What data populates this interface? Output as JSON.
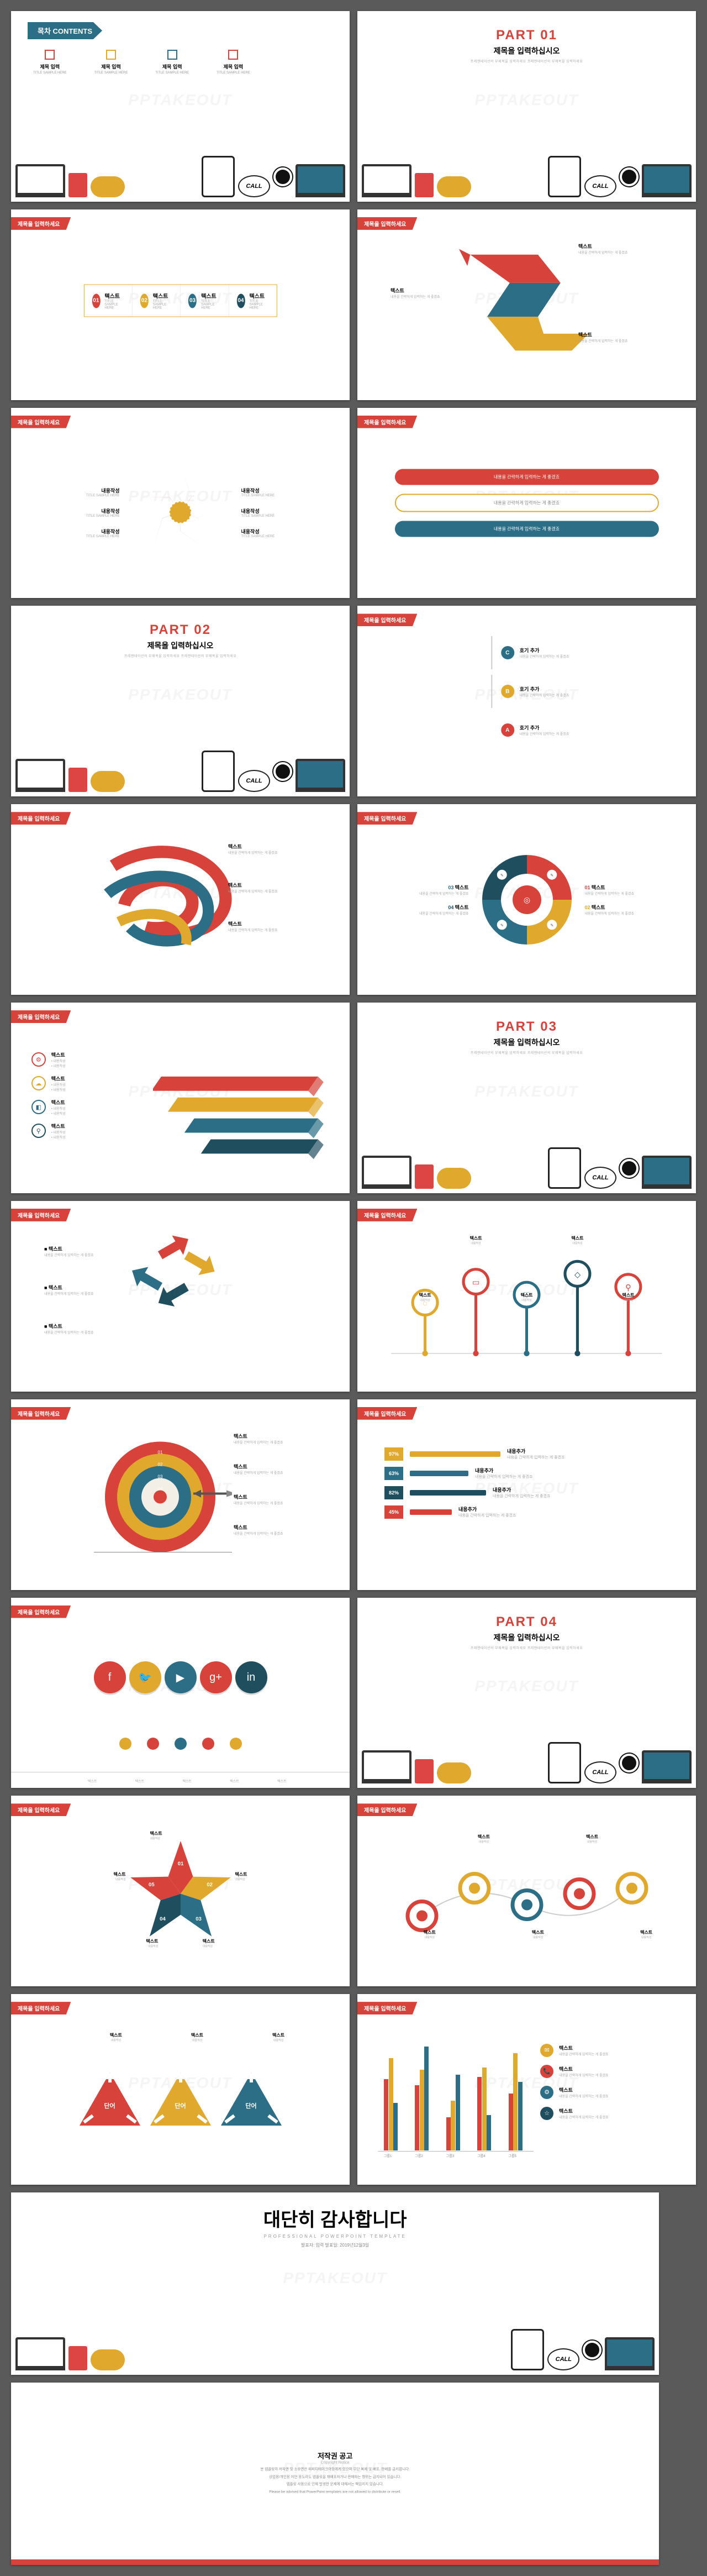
{
  "watermark": "PPTAKEOUT",
  "palette": {
    "red": "#d7433a",
    "gold": "#e1a82e",
    "teal": "#2b6e86",
    "darkteal": "#1f4e5f",
    "offwhite": "#f4efe6",
    "grey": "#bfbfbf"
  },
  "titlebar_text": "제목을 입력하세요",
  "sample_sub": "TITLE SAMPLE HERE",
  "text_kr": "텍스트",
  "content_kr": "내용작성",
  "insert_kr": "내용을 간략하게 입력하는 게 좋겠죠",
  "slide1": {
    "badge": "목차 CONTENTS",
    "items": [
      {
        "color": "#d7433a",
        "label": "제목 입력"
      },
      {
        "color": "#e1a82e",
        "label": "제목 입력"
      },
      {
        "color": "#2b6e86",
        "label": "제목 입력"
      },
      {
        "color": "#d7433a",
        "label": "제목 입력"
      }
    ],
    "call_bubble": "CALL"
  },
  "parts": {
    "p1": {
      "n": "PART 01",
      "color": "#d7433a",
      "title": "제목을 입력하십시오",
      "sub": "프레젠테이션의 부제목을 입력하세요 프레젠테이션의 부제목을 입력하세요"
    },
    "p2": {
      "n": "PART 02",
      "color": "#d7433a",
      "title": "제목을 입력하십시오",
      "sub": "프레젠테이션의 부제목을 입력하세요 프레젠테이션의 부제목을 입력하세요"
    },
    "p3": {
      "n": "PART 03",
      "color": "#d7433a",
      "title": "제목을 입력하십시오",
      "sub": "프레젠테이션의 부제목을 입력하세요 프레젠테이션의 부제목을 입력하세요"
    },
    "p4": {
      "n": "PART 04",
      "color": "#d7433a",
      "title": "제목을 입력하십시오",
      "sub": "프레젠테이션의 부제목을 입력하세요 프레젠테이션의 부제목을 입력하세요"
    }
  },
  "slide3": {
    "cells": [
      {
        "n": "01",
        "color": "#d7433a"
      },
      {
        "n": "02",
        "color": "#e1a82e"
      },
      {
        "n": "03",
        "color": "#2b6e86"
      },
      {
        "n": "04",
        "color": "#1f4e5f"
      }
    ]
  },
  "slide4": {
    "type": "zigzag-arrow",
    "segments": [
      {
        "color": "#d7433a"
      },
      {
        "color": "#2b6e86"
      },
      {
        "color": "#e1a82e"
      }
    ],
    "labels": [
      {
        "a": "텍스트",
        "b": "내용을 간략하게 입력하는 게 좋겠죠"
      },
      {
        "a": "텍스트",
        "b": "내용을 간략하게 입력하는 게 좋겠죠"
      },
      {
        "a": "텍스트",
        "b": "내용을 간략하게 입력하는 게 좋겠죠"
      }
    ]
  },
  "slide5": {
    "type": "star-segments",
    "points": [
      {
        "color": "#d7433a"
      },
      {
        "color": "#e1a82e"
      },
      {
        "color": "#2b6e86"
      },
      {
        "color": "#1f4e5f"
      },
      {
        "color": "#d7433a"
      }
    ],
    "center_color": "#e1a82e"
  },
  "slide6": {
    "pills": [
      {
        "fill": "#d7433a",
        "outline": false
      },
      {
        "fill": "#e1a82e",
        "outline": true
      },
      {
        "fill": "#2b6e86",
        "outline": false
      }
    ]
  },
  "slide8": {
    "nodes": [
      {
        "id": "C",
        "color": "#2b6e86",
        "label": "호기 추가",
        "sub": "내용을 간략하게 입력하는 게 좋겠죠"
      },
      {
        "id": "B",
        "color": "#e1a82e",
        "label": "호기 추가",
        "sub": "내용을 간략하게 입력하는 게 좋겠죠"
      },
      {
        "id": "A",
        "color": "#d7433a",
        "label": "호기 추가",
        "sub": "내용을 간략하게 입력하는 게 좋겠죠"
      }
    ]
  },
  "slide9": {
    "type": "ribbon-swirl",
    "ribbons": [
      {
        "c": "#d7433a"
      },
      {
        "c": "#2b6e86"
      },
      {
        "c": "#e1a82e"
      }
    ],
    "labels": [
      "텍스트",
      "텍스트",
      "텍스트"
    ]
  },
  "slide10": {
    "type": "donut",
    "segments": [
      {
        "id": "01",
        "color": "#d7433a",
        "pct": 25
      },
      {
        "id": "02",
        "color": "#e1a82e",
        "pct": 25
      },
      {
        "id": "03",
        "color": "#2b6e86",
        "pct": 25
      },
      {
        "id": "04",
        "color": "#1f4e5f",
        "pct": 25
      }
    ],
    "center_color": "#d7433a"
  },
  "slide11": {
    "type": "3d-stacked-bars",
    "icons": [
      {
        "c": "#d7433a",
        "glyph": "⚙"
      },
      {
        "c": "#e1a82e",
        "glyph": "☁"
      },
      {
        "c": "#2b6e86",
        "glyph": "◧"
      },
      {
        "c": "#1f4e5f",
        "glyph": "⚲"
      }
    ],
    "bars": [
      {
        "color": "#d7433a",
        "len": 0.95
      },
      {
        "color": "#e1a82e",
        "len": 0.85
      },
      {
        "color": "#2b6e86",
        "len": 0.75
      },
      {
        "color": "#1f4e5f",
        "len": 0.65
      }
    ]
  },
  "slide13": {
    "type": "arrow-cluster",
    "items": [
      "텍스트",
      "텍스트",
      "텍스트"
    ],
    "colors": [
      "#d7433a",
      "#e1a82e",
      "#2b6e86",
      "#1f4e5f"
    ]
  },
  "slide14": {
    "type": "lollipop",
    "stems": [
      {
        "c": "#e1a82e",
        "glyph": "◌"
      },
      {
        "c": "#d7433a",
        "glyph": "▭"
      },
      {
        "c": "#2b6e86",
        "glyph": "♡"
      },
      {
        "c": "#1f4e5f",
        "glyph": "◇"
      },
      {
        "c": "#d7433a",
        "glyph": "⚲"
      }
    ]
  },
  "slide15": {
    "type": "target",
    "rings": [
      {
        "c": "#d7433a"
      },
      {
        "c": "#e1a82e"
      },
      {
        "c": "#2b6e86"
      },
      {
        "c": "#f4efe6"
      }
    ],
    "nums": [
      "01",
      "02",
      "03",
      "04"
    ]
  },
  "slide16": {
    "type": "hbars",
    "rows": [
      {
        "pct": "97%",
        "c": "#e1a82e",
        "w": 0.82,
        "label": "내용추가"
      },
      {
        "pct": "63%",
        "c": "#2b6e86",
        "w": 0.53,
        "label": "내용추가"
      },
      {
        "pct": "82%",
        "c": "#1f4e5f",
        "w": 0.69,
        "label": "내용추가"
      },
      {
        "pct": "45%",
        "c": "#d7433a",
        "w": 0.38,
        "label": "내용추가"
      }
    ]
  },
  "slide17": {
    "type": "social-circles",
    "icons": [
      {
        "c": "#d7433a",
        "g": "f"
      },
      {
        "c": "#e1a82e",
        "g": "🐦"
      },
      {
        "c": "#2b6e86",
        "g": "▶"
      },
      {
        "c": "#d7433a",
        "g": "g+"
      },
      {
        "c": "#1f4e5f",
        "g": "in"
      }
    ],
    "dots": [
      "#e1a82e",
      "#d7433a",
      "#2b6e86",
      "#d7433a",
      "#e1a82e"
    ]
  },
  "slide19": {
    "type": "star-numbers",
    "points": [
      {
        "n": "01",
        "c": "#d7433a"
      },
      {
        "n": "02",
        "c": "#e1a82e"
      },
      {
        "n": "03",
        "c": "#2b6e86"
      },
      {
        "n": "04",
        "c": "#1f4e5f"
      },
      {
        "n": "05",
        "c": "#d7433a"
      }
    ]
  },
  "slide20": {
    "type": "circle-chain",
    "nodes": [
      {
        "c": "#d7433a"
      },
      {
        "c": "#e1a82e"
      },
      {
        "c": "#2b6e86"
      },
      {
        "c": "#d7433a"
      },
      {
        "c": "#e1a82e"
      }
    ]
  },
  "slide21": {
    "type": "triangles",
    "items": [
      {
        "c": "#d7433a",
        "label": "단어"
      },
      {
        "c": "#e1a82e",
        "label": "단어"
      },
      {
        "c": "#2b6e86",
        "label": "단어"
      }
    ]
  },
  "slide22": {
    "type": "grouped-bar",
    "groups": [
      "그룹1",
      "그룹2",
      "그룹3",
      "그룹4",
      "그룹5"
    ],
    "series": [
      {
        "c": "#d7433a",
        "v": [
          60,
          55,
          28,
          62,
          48
        ]
      },
      {
        "c": "#e1a82e",
        "v": [
          78,
          68,
          42,
          70,
          82
        ]
      },
      {
        "c": "#2b6e86",
        "v": [
          40,
          88,
          64,
          30,
          58
        ]
      }
    ],
    "ymax": 100,
    "legend": [
      {
        "c": "#e1a82e",
        "g": "✉"
      },
      {
        "c": "#d7433a",
        "g": "📞"
      },
      {
        "c": "#2b6e86",
        "g": "⚙"
      },
      {
        "c": "#1f4e5f",
        "g": "☆"
      }
    ]
  },
  "slide23": {
    "big": "대단히 감사합니다",
    "sub": "PROFESSIONAL POWERPOINT TEMPLATE",
    "date_label": "발표자: 입력    발표일: 2019년12월3일"
  },
  "slide24": {
    "title": "저작권 공고",
    "title_en": "Copyright Notice",
    "paras": [
      "본 템플릿의 저작권 및 소유권은 피피티테이크아웃에게 있으며 무단 복제 및 배포, 판매를 금지합니다.",
      "상업용/개인용 어떤 용도라도 템플릿을 재배포하거나 판매하는 행위는 금지되어 있습니다.",
      "템플릿 사용으로 인해 발생한 문제에 대해서는 책임지지 않습니다.",
      "Please be advised that PowerPoint templates are not allowed to distribute or resell."
    ]
  }
}
